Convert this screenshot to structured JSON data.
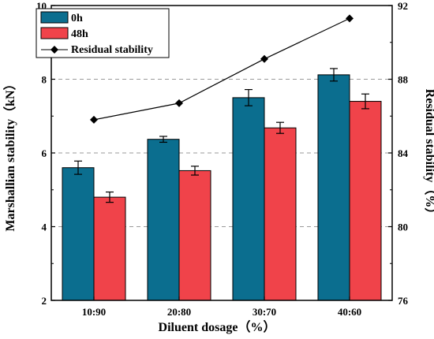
{
  "chart_data": {
    "type": "bar",
    "categories": [
      "10:90",
      "20:80",
      "30:70",
      "40:60"
    ],
    "xlabel": "Diluent dosage（%）",
    "ylabel": "Marshallian stability（kN）",
    "y2label": "Residual stability（%）",
    "ylim": [
      2,
      10
    ],
    "y2lim": [
      76,
      92
    ],
    "yticks": [
      2,
      4,
      6,
      8,
      10
    ],
    "y2ticks": [
      76,
      80,
      84,
      88,
      92
    ],
    "grid": "dashed-horizontal",
    "legend_position": "top-left",
    "series": [
      {
        "name": "0h",
        "kind": "bar",
        "color": "#0b6e8f",
        "values": [
          5.6,
          6.37,
          7.5,
          8.12
        ],
        "errors": [
          0.18,
          0.08,
          0.22,
          0.17
        ]
      },
      {
        "name": "48h",
        "kind": "bar",
        "color": "#f0434a",
        "values": [
          4.8,
          5.52,
          6.68,
          7.4
        ],
        "errors": [
          0.14,
          0.12,
          0.15,
          0.2
        ]
      },
      {
        "name": "Residual stability",
        "kind": "line",
        "axis": "right",
        "color": "#000000",
        "marker": "diamond",
        "values": [
          85.8,
          86.7,
          89.1,
          91.3
        ]
      }
    ]
  }
}
